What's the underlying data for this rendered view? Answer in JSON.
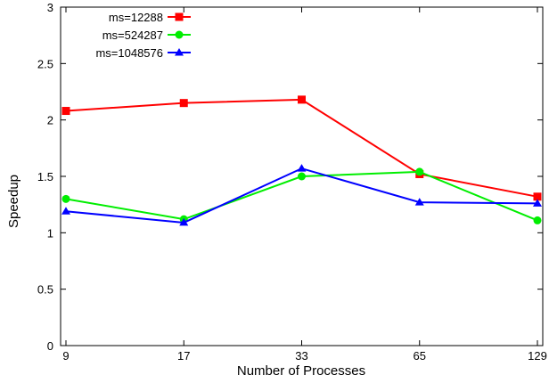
{
  "chart_data": {
    "type": "line",
    "xlabel": "Number of Processes",
    "ylabel": "Speedup",
    "categories": [
      "9",
      "17",
      "33",
      "65",
      "129"
    ],
    "ylim": [
      0,
      3
    ],
    "yticks": [
      "0",
      "0.5",
      "1",
      "1.5",
      "2",
      "2.5",
      "3"
    ],
    "grid": false,
    "legend_position": "top-left",
    "series": [
      {
        "name": "ms=12288",
        "color": "#ff0000",
        "marker": "square",
        "values": [
          2.08,
          2.15,
          2.18,
          1.52,
          1.32
        ]
      },
      {
        "name": "ms=524287",
        "color": "#00ee00",
        "marker": "circle",
        "values": [
          1.3,
          1.12,
          1.5,
          1.54,
          1.11
        ]
      },
      {
        "name": "ms=1048576",
        "color": "#0000ff",
        "marker": "triangle",
        "values": [
          1.19,
          1.09,
          1.57,
          1.27,
          1.26
        ]
      }
    ]
  }
}
